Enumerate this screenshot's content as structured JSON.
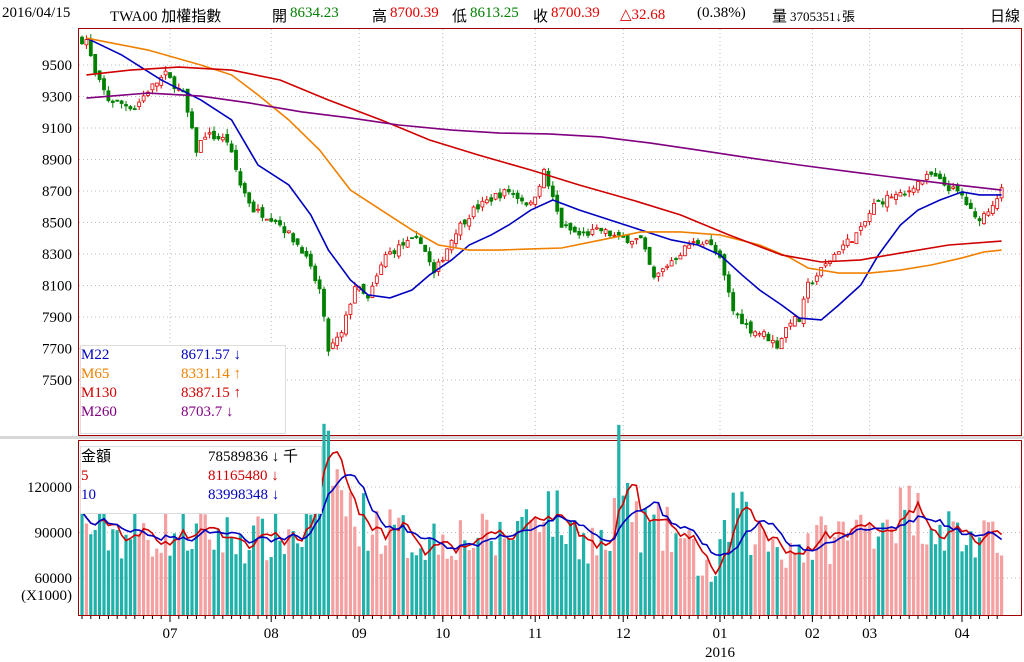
{
  "header": {
    "date": "2016/04/15",
    "symbol": "TWA00 加權指數",
    "open_label": "開",
    "open": "8634.23",
    "high_label": "高",
    "high": "8700.39",
    "low_label": "低",
    "low": "8613.25",
    "close_label": "收",
    "close": "8700.39",
    "change": "△32.68",
    "change_pct": "(0.38%)",
    "volume_label": "量",
    "volume": "3705351↓張",
    "period": "日線"
  },
  "colors": {
    "up": "#e00000",
    "down": "#008000",
    "vol_up": "#f4a0a0",
    "vol_down": "#20b2aa",
    "m22": "#0000c0",
    "m65": "#f08000",
    "m130": "#d00000",
    "m260": "#800080",
    "frame": "#a00000"
  },
  "ma_legend": [
    {
      "name": "M22",
      "value": "8671.57 ↓",
      "color": "#0000c0"
    },
    {
      "name": "M65",
      "value": "8331.14 ↑",
      "color": "#f08000"
    },
    {
      "name": "M130",
      "value": "8387.15 ↑",
      "color": "#d00000"
    },
    {
      "name": "M260",
      "value": "8703.7 ↓",
      "color": "#800080"
    }
  ],
  "vol_legend": [
    {
      "name": "金額",
      "value": "78589836 ↓ 千",
      "color": "#000000"
    },
    {
      "name": "5",
      "value": "81165480 ↓",
      "color": "#d00000"
    },
    {
      "name": "10",
      "value": "83998348 ↓",
      "color": "#0000c0"
    }
  ],
  "chart_data": [
    {
      "type": "candlestick",
      "title": "TWA00 加權指數 日線",
      "days": 210,
      "y_ticks": [
        9500,
        9300,
        9100,
        8900,
        8700,
        8500,
        8300,
        8100,
        7900,
        7700,
        7500
      ],
      "x_ticks": [
        {
          "day": 20,
          "label": "07"
        },
        {
          "day": 43,
          "label": "08"
        },
        {
          "day": 63,
          "label": "09"
        },
        {
          "day": 82,
          "label": "10"
        },
        {
          "day": 103,
          "label": "11"
        },
        {
          "day": 123,
          "label": "12"
        },
        {
          "day": 145,
          "label": "01"
        },
        {
          "day": 166,
          "label": "02"
        },
        {
          "day": 179,
          "label": "03"
        },
        {
          "day": 200,
          "label": "04"
        }
      ],
      "year_label": {
        "day": 145,
        "label": "2016"
      },
      "close_keypoints": [
        [
          1,
          9660
        ],
        [
          3,
          9440
        ],
        [
          6,
          9280
        ],
        [
          12,
          9230
        ],
        [
          15,
          9340
        ],
        [
          19,
          9440
        ],
        [
          23,
          9310
        ],
        [
          26,
          8960
        ],
        [
          28,
          9060
        ],
        [
          33,
          9020
        ],
        [
          36,
          8740
        ],
        [
          39,
          8580
        ],
        [
          44,
          8520
        ],
        [
          50,
          8330
        ],
        [
          54,
          8070
        ],
        [
          56,
          7690
        ],
        [
          59,
          7790
        ],
        [
          62,
          8100
        ],
        [
          65,
          8010
        ],
        [
          69,
          8290
        ],
        [
          73,
          8360
        ],
        [
          77,
          8390
        ],
        [
          80,
          8170
        ],
        [
          85,
          8450
        ],
        [
          89,
          8580
        ],
        [
          94,
          8670
        ],
        [
          97,
          8700
        ],
        [
          102,
          8610
        ],
        [
          105,
          8820
        ],
        [
          109,
          8480
        ],
        [
          113,
          8420
        ],
        [
          118,
          8450
        ],
        [
          122,
          8400
        ],
        [
          127,
          8390
        ],
        [
          130,
          8140
        ],
        [
          134,
          8260
        ],
        [
          138,
          8360
        ],
        [
          142,
          8390
        ],
        [
          145,
          8260
        ],
        [
          148,
          7940
        ],
        [
          152,
          7820
        ],
        [
          155,
          7790
        ],
        [
          158,
          7720
        ],
        [
          161,
          7880
        ],
        [
          163,
          7880
        ],
        [
          165,
          8100
        ],
        [
          169,
          8230
        ],
        [
          172,
          8330
        ],
        [
          177,
          8450
        ],
        [
          180,
          8610
        ],
        [
          184,
          8670
        ],
        [
          187,
          8670
        ],
        [
          189,
          8740
        ],
        [
          193,
          8800
        ],
        [
          196,
          8740
        ],
        [
          200,
          8670
        ],
        [
          203,
          8520
        ],
        [
          205,
          8550
        ],
        [
          209,
          8700
        ]
      ],
      "ma_series": [
        {
          "name": "M22",
          "points": [
            [
              1,
              9671
            ],
            [
              9,
              9564
            ],
            [
              18,
              9405
            ],
            [
              27,
              9278
            ],
            [
              34,
              9151
            ],
            [
              40,
              8865
            ],
            [
              47,
              8738
            ],
            [
              52,
              8548
            ],
            [
              56,
              8325
            ],
            [
              61,
              8135
            ],
            [
              65,
              8040
            ],
            [
              70,
              8021
            ],
            [
              75,
              8071
            ],
            [
              79,
              8167
            ],
            [
              84,
              8262
            ],
            [
              88,
              8357
            ],
            [
              93,
              8421
            ],
            [
              97,
              8484
            ],
            [
              102,
              8579
            ],
            [
              107,
              8643
            ],
            [
              113,
              8579
            ],
            [
              120,
              8516
            ],
            [
              127,
              8452
            ],
            [
              134,
              8389
            ],
            [
              140,
              8357
            ],
            [
              145,
              8294
            ],
            [
              150,
              8167
            ],
            [
              154,
              8071
            ],
            [
              159,
              7976
            ],
            [
              163,
              7893
            ],
            [
              168,
              7881
            ],
            [
              172,
              7976
            ],
            [
              177,
              8103
            ],
            [
              181,
              8294
            ],
            [
              186,
              8484
            ],
            [
              190,
              8579
            ],
            [
              195,
              8643
            ],
            [
              200,
              8694
            ],
            [
              204,
              8675
            ],
            [
              209,
              8675
            ]
          ]
        },
        {
          "name": "M65",
          "points": [
            [
              1,
              9671
            ],
            [
              15,
              9595
            ],
            [
              27,
              9500
            ],
            [
              34,
              9437
            ],
            [
              40,
              9310
            ],
            [
              47,
              9151
            ],
            [
              54,
              8960
            ],
            [
              61,
              8706
            ],
            [
              68,
              8579
            ],
            [
              75,
              8452
            ],
            [
              81,
              8357
            ],
            [
              88,
              8325
            ],
            [
              95,
              8325
            ],
            [
              102,
              8332
            ],
            [
              109,
              8338
            ],
            [
              118,
              8389
            ],
            [
              127,
              8440
            ],
            [
              136,
              8440
            ],
            [
              145,
              8421
            ],
            [
              154,
              8357
            ],
            [
              161,
              8275
            ],
            [
              165,
              8211
            ],
            [
              172,
              8179
            ],
            [
              179,
              8179
            ],
            [
              186,
              8198
            ],
            [
              193,
              8230
            ],
            [
              200,
              8275
            ],
            [
              205,
              8313
            ],
            [
              209,
              8325
            ]
          ]
        },
        {
          "name": "M130",
          "points": [
            [
              1,
              9437
            ],
            [
              11,
              9468
            ],
            [
              22,
              9487
            ],
            [
              34,
              9468
            ],
            [
              45,
              9405
            ],
            [
              56,
              9278
            ],
            [
              68,
              9151
            ],
            [
              79,
              9024
            ],
            [
              90,
              8929
            ],
            [
              102,
              8833
            ],
            [
              113,
              8738
            ],
            [
              125,
              8643
            ],
            [
              136,
              8548
            ],
            [
              147,
              8421
            ],
            [
              159,
              8294
            ],
            [
              168,
              8249
            ],
            [
              177,
              8262
            ],
            [
              186,
              8306
            ],
            [
              197,
              8357
            ],
            [
              209,
              8382
            ]
          ]
        },
        {
          "name": "M260",
          "points": [
            [
              1,
              9290
            ],
            [
              15,
              9322
            ],
            [
              27,
              9303
            ],
            [
              38,
              9259
            ],
            [
              50,
              9202
            ],
            [
              61,
              9164
            ],
            [
              72,
              9119
            ],
            [
              84,
              9087
            ],
            [
              95,
              9068
            ],
            [
              106,
              9062
            ],
            [
              118,
              9043
            ],
            [
              129,
              9005
            ],
            [
              140,
              8960
            ],
            [
              152,
              8909
            ],
            [
              163,
              8865
            ],
            [
              175,
              8821
            ],
            [
              186,
              8782
            ],
            [
              197,
              8744
            ],
            [
              209,
              8706
            ]
          ]
        }
      ]
    },
    {
      "type": "bar",
      "title": "金額",
      "unit": "(X1000)",
      "y_ticks": [
        120000,
        90000,
        60000
      ],
      "volume_keypoints": [
        [
          0,
          95000
        ],
        [
          10,
          88000
        ],
        [
          20,
          90000
        ],
        [
          30,
          88000
        ],
        [
          40,
          85000
        ],
        [
          50,
          90000
        ],
        [
          56,
          145000
        ],
        [
          60,
          105000
        ],
        [
          66,
          95000
        ],
        [
          75,
          85000
        ],
        [
          85,
          88000
        ],
        [
          95,
          85000
        ],
        [
          105,
          110000
        ],
        [
          110,
          92000
        ],
        [
          120,
          80000
        ],
        [
          122,
          135000
        ],
        [
          126,
          95000
        ],
        [
          135,
          88000
        ],
        [
          144,
          60000
        ],
        [
          148,
          108000
        ],
        [
          152,
          90000
        ],
        [
          160,
          80000
        ],
        [
          168,
          85000
        ],
        [
          175,
          90000
        ],
        [
          182,
          100000
        ],
        [
          188,
          105000
        ],
        [
          195,
          95000
        ],
        [
          202,
          85000
        ],
        [
          209,
          80000
        ]
      ]
    }
  ]
}
